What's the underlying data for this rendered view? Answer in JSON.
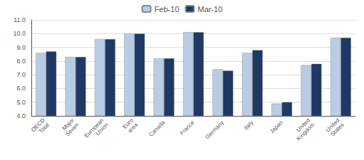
{
  "chart_data": {
    "type": "bar",
    "categories": [
      "OECD Total",
      "Major Seven",
      "European Union",
      "Euro area",
      "Canada",
      "France",
      "Germany",
      "Italy",
      "Japan",
      "United Kingdom",
      "United States"
    ],
    "series": [
      {
        "name": "Feb-10",
        "color": "#b8cce4",
        "values": [
          8.6,
          8.3,
          9.6,
          10.0,
          8.2,
          10.1,
          7.4,
          8.6,
          4.9,
          7.7,
          9.7
        ]
      },
      {
        "name": "Mar-10",
        "color": "#1f3864",
        "values": [
          8.7,
          8.3,
          9.6,
          10.0,
          8.2,
          10.1,
          7.3,
          8.8,
          5.0,
          7.8,
          9.7
        ]
      }
    ],
    "ylim": [
      4.0,
      11.0
    ],
    "yticks": [
      {
        "value": 4,
        "label": "4.0"
      },
      {
        "value": 5,
        "label": "5.0"
      },
      {
        "value": 6,
        "label": "6.0"
      },
      {
        "value": 7,
        "label": "7.0"
      },
      {
        "value": 8,
        "label": "8.0"
      },
      {
        "value": 9,
        "label": "9.0"
      },
      {
        "value": 10,
        "label": "10.0"
      },
      {
        "value": 11,
        "label": "11.0"
      }
    ],
    "grid": true,
    "legend": "top"
  }
}
